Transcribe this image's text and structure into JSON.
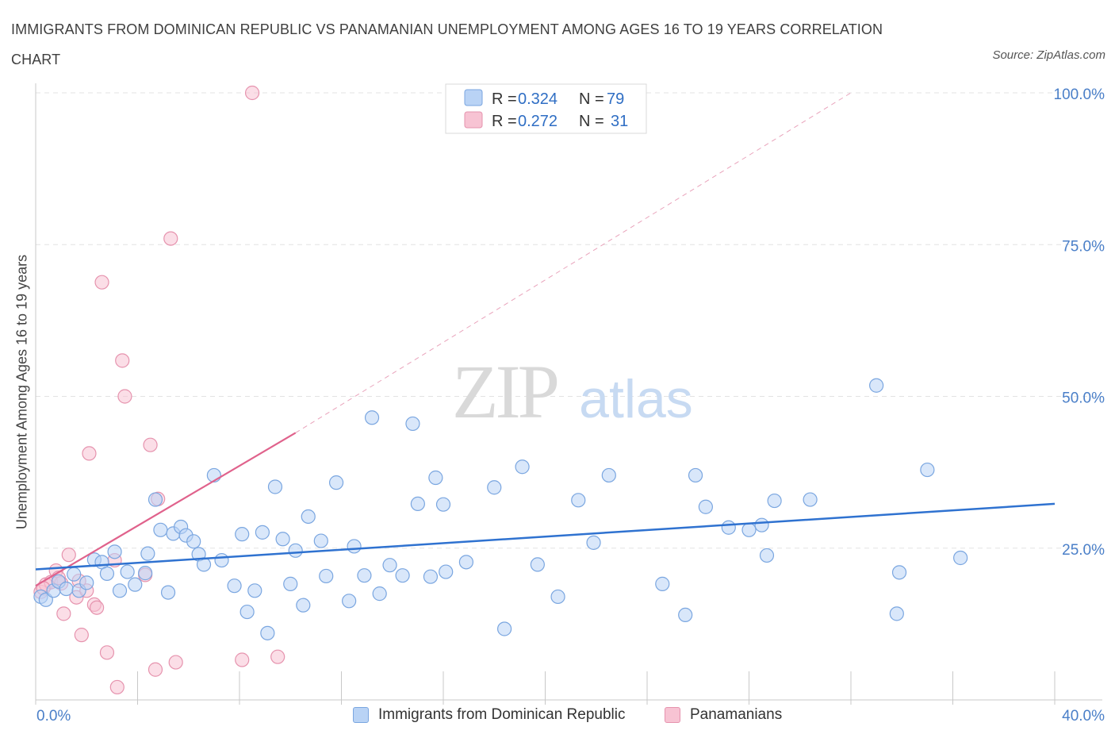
{
  "title": "IMMIGRANTS FROM DOMINICAN REPUBLIC VS PANAMANIAN UNEMPLOYMENT AMONG AGES 16 TO 19 YEARS CORRELATION CHART",
  "source": "Source: ZipAtlas.com",
  "watermark": {
    "zip": "ZIP",
    "atlas": "atlas"
  },
  "colors": {
    "blue_fill": "#b9d3f5",
    "blue_stroke": "#7aa6e0",
    "blue_line": "#2f72d0",
    "pink_fill": "#f7c3d3",
    "pink_stroke": "#e693ae",
    "pink_line": "#e0628c",
    "tick_label": "#4a7fc8"
  },
  "legend_top": [
    {
      "r_label": "R = ",
      "r_value": "0.324",
      "n_label": "N = ",
      "n_value": "79"
    },
    {
      "r_label": "R = ",
      "r_value": "0.272",
      "n_label": "N = ",
      "n_value": "31"
    }
  ],
  "legend_bottom": [
    {
      "label": "Immigrants from Dominican Republic"
    },
    {
      "label": "Panamanians"
    }
  ],
  "chart_data": {
    "type": "scatter",
    "xlabel": "",
    "ylabel": "Unemployment Among Ages 16 to 19 years",
    "xlim": [
      0,
      40
    ],
    "ylim": [
      0,
      100
    ],
    "x_tick_labels": [
      "0.0%",
      "40.0%"
    ],
    "y_ticks": [
      25,
      50,
      75,
      100
    ],
    "y_tick_labels": [
      "25.0%",
      "50.0%",
      "75.0%",
      "100.0%"
    ],
    "grid": true,
    "legend_position": "top-center",
    "series": [
      {
        "name": "Immigrants from Dominican Republic",
        "R": 0.324,
        "N": 79,
        "trend": {
          "x": [
            0,
            40
          ],
          "y": [
            21.5,
            32.3
          ]
        },
        "points": [
          [
            0.2,
            17.0
          ],
          [
            0.4,
            16.5
          ],
          [
            0.7,
            18.0
          ],
          [
            0.9,
            19.5
          ],
          [
            1.2,
            18.3
          ],
          [
            1.5,
            20.7
          ],
          [
            1.7,
            18.0
          ],
          [
            2.0,
            19.3
          ],
          [
            2.3,
            23.1
          ],
          [
            2.6,
            22.7
          ],
          [
            2.8,
            20.8
          ],
          [
            3.1,
            24.4
          ],
          [
            3.3,
            18.0
          ],
          [
            3.6,
            21.1
          ],
          [
            3.9,
            19.0
          ],
          [
            4.3,
            20.9
          ],
          [
            4.4,
            24.1
          ],
          [
            4.7,
            33.0
          ],
          [
            4.9,
            28.0
          ],
          [
            5.2,
            17.7
          ],
          [
            5.4,
            27.4
          ],
          [
            5.7,
            28.5
          ],
          [
            5.9,
            27.1
          ],
          [
            6.2,
            26.1
          ],
          [
            6.4,
            24.0
          ],
          [
            6.6,
            22.3
          ],
          [
            7.0,
            37.0
          ],
          [
            7.3,
            23.0
          ],
          [
            7.8,
            18.8
          ],
          [
            8.1,
            27.3
          ],
          [
            8.3,
            14.5
          ],
          [
            8.6,
            18.0
          ],
          [
            8.9,
            27.6
          ],
          [
            9.1,
            11.0
          ],
          [
            9.4,
            35.1
          ],
          [
            9.7,
            26.5
          ],
          [
            10.2,
            24.6
          ],
          [
            10.0,
            19.1
          ],
          [
            10.5,
            15.6
          ],
          [
            10.7,
            30.2
          ],
          [
            11.2,
            26.2
          ],
          [
            11.4,
            20.4
          ],
          [
            11.8,
            35.8
          ],
          [
            12.3,
            16.3
          ],
          [
            12.5,
            25.3
          ],
          [
            12.9,
            20.5
          ],
          [
            13.2,
            46.5
          ],
          [
            13.5,
            17.5
          ],
          [
            13.9,
            22.2
          ],
          [
            14.4,
            20.5
          ],
          [
            15.0,
            32.3
          ],
          [
            14.8,
            45.5
          ],
          [
            15.5,
            20.3
          ],
          [
            15.7,
            36.6
          ],
          [
            16.0,
            32.2
          ],
          [
            16.1,
            21.1
          ],
          [
            16.9,
            22.7
          ],
          [
            18.0,
            35.0
          ],
          [
            18.4,
            11.7
          ],
          [
            19.1,
            38.4
          ],
          [
            19.7,
            22.3
          ],
          [
            20.5,
            17.0
          ],
          [
            21.3,
            32.9
          ],
          [
            21.9,
            25.9
          ],
          [
            22.5,
            37.0
          ],
          [
            24.6,
            19.1
          ],
          [
            25.5,
            14.0
          ],
          [
            25.9,
            37.0
          ],
          [
            26.3,
            31.8
          ],
          [
            27.2,
            28.4
          ],
          [
            28.0,
            28.0
          ],
          [
            28.5,
            28.8
          ],
          [
            28.7,
            23.8
          ],
          [
            29.0,
            32.8
          ],
          [
            30.4,
            33.0
          ],
          [
            33.0,
            51.8
          ],
          [
            33.8,
            14.2
          ],
          [
            33.9,
            21.0
          ],
          [
            35.0,
            37.9
          ],
          [
            36.3,
            23.4
          ]
        ]
      },
      {
        "name": "Panamanians",
        "R": 0.272,
        "N": 31,
        "trend": {
          "x": [
            0,
            10.2
          ],
          "y": [
            18.8,
            44.0
          ]
        },
        "trend_dashed_extension": {
          "x": [
            10.2,
            32.0
          ],
          "y": [
            44.0,
            100.0
          ]
        },
        "points": [
          [
            0.2,
            17.8
          ],
          [
            0.4,
            19.0
          ],
          [
            0.6,
            19.4
          ],
          [
            0.8,
            21.3
          ],
          [
            1.0,
            19.2
          ],
          [
            1.1,
            14.2
          ],
          [
            1.3,
            23.9
          ],
          [
            1.6,
            16.9
          ],
          [
            1.8,
            10.7
          ],
          [
            2.0,
            18.0
          ],
          [
            2.1,
            40.6
          ],
          [
            2.3,
            15.7
          ],
          [
            2.4,
            15.2
          ],
          [
            2.6,
            68.8
          ],
          [
            2.8,
            7.8
          ],
          [
            3.1,
            23.0
          ],
          [
            3.2,
            2.1
          ],
          [
            3.4,
            55.9
          ],
          [
            3.5,
            50.0
          ],
          [
            4.3,
            20.6
          ],
          [
            4.5,
            42.0
          ],
          [
            4.7,
            5.0
          ],
          [
            4.8,
            33.1
          ],
          [
            5.3,
            76.0
          ],
          [
            5.5,
            6.2
          ],
          [
            8.1,
            6.6
          ],
          [
            8.5,
            100.0
          ],
          [
            9.5,
            7.1
          ],
          [
            0.9,
            20.1
          ],
          [
            1.7,
            19.6
          ],
          [
            0.3,
            18.4
          ]
        ]
      }
    ]
  }
}
